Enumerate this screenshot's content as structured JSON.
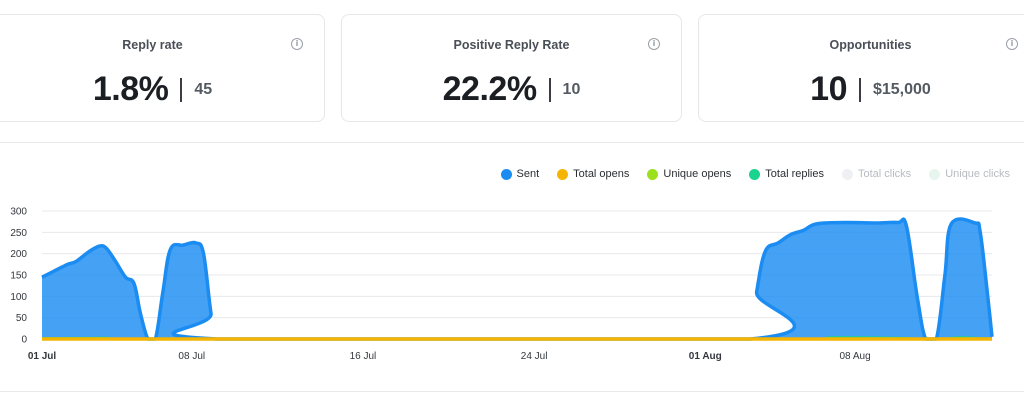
{
  "cards": [
    {
      "title": "Reply rate",
      "value": "1.8%",
      "sub": "45"
    },
    {
      "title": "Positive Reply Rate",
      "value": "22.2%",
      "sub": "10"
    },
    {
      "title": "Opportunities",
      "value": "10",
      "sub": "$15,000"
    }
  ],
  "info_glyph": "i",
  "legend": [
    {
      "label": "Sent",
      "color": "#1b8cf2",
      "active": true
    },
    {
      "label": "Total opens",
      "color": "#f4b400",
      "active": true
    },
    {
      "label": "Unique opens",
      "color": "#9be01d",
      "active": true
    },
    {
      "label": "Total replies",
      "color": "#19d38e",
      "active": true
    },
    {
      "label": "Total clicks",
      "color": "#eef0f3",
      "active": false
    },
    {
      "label": "Unique clicks",
      "color": "#e6f5ee",
      "active": false
    }
  ],
  "chart_data": {
    "type": "area",
    "title": "",
    "xlabel": "",
    "ylabel": "",
    "ylim": [
      0,
      300
    ],
    "yticks": [
      0,
      50,
      100,
      150,
      200,
      250,
      300
    ],
    "x_ticks": [
      {
        "label": "01 Jul",
        "day": 0,
        "bold": true
      },
      {
        "label": "08 Jul",
        "day": 7,
        "bold": false
      },
      {
        "label": "16 Jul",
        "day": 15,
        "bold": false
      },
      {
        "label": "24 Jul",
        "day": 23,
        "bold": false
      },
      {
        "label": "01 Aug",
        "day": 31,
        "bold": true
      },
      {
        "label": "08 Aug",
        "day": 38,
        "bold": false
      }
    ],
    "grid": true,
    "legend_position": "top-right",
    "series": [
      {
        "name": "Sent",
        "color": "#1b8cf2",
        "points": [
          [
            0,
            145
          ],
          [
            0.6,
            160
          ],
          [
            1.2,
            175
          ],
          [
            1.6,
            182
          ],
          [
            2.2,
            205
          ],
          [
            2.7,
            218
          ],
          [
            3.0,
            213
          ],
          [
            3.4,
            185
          ],
          [
            3.9,
            145
          ],
          [
            4.3,
            130
          ],
          [
            4.6,
            60
          ],
          [
            4.95,
            0
          ],
          [
            5.3,
            0
          ],
          [
            5.65,
            110
          ],
          [
            6.0,
            210
          ],
          [
            6.6,
            220
          ],
          [
            7.2,
            225
          ],
          [
            7.55,
            200
          ],
          [
            7.9,
            60
          ],
          [
            8.2,
            0
          ],
          [
            33.1,
            0
          ],
          [
            33.4,
            110
          ],
          [
            33.8,
            205
          ],
          [
            34.4,
            225
          ],
          [
            35.0,
            245
          ],
          [
            35.6,
            255
          ],
          [
            36.2,
            270
          ],
          [
            37.5,
            273
          ],
          [
            39.0,
            272
          ],
          [
            40.0,
            273
          ],
          [
            40.4,
            265
          ],
          [
            40.9,
            100
          ],
          [
            41.3,
            0
          ],
          [
            41.8,
            0
          ],
          [
            42.2,
            150
          ],
          [
            42.5,
            270
          ],
          [
            43.6,
            272
          ],
          [
            43.85,
            250
          ],
          [
            44.2,
            100
          ],
          [
            44.4,
            5
          ]
        ]
      },
      {
        "name": "Total replies",
        "color": "#19d38e",
        "points": [
          [
            0,
            2
          ],
          [
            3,
            3
          ],
          [
            4.8,
            0
          ],
          [
            33.2,
            0
          ],
          [
            37,
            4
          ],
          [
            40,
            3
          ],
          [
            41.2,
            0
          ],
          [
            42,
            0
          ],
          [
            43,
            4
          ],
          [
            44.4,
            0
          ]
        ]
      },
      {
        "name": "Total opens",
        "color": "#f4b400",
        "points": [
          [
            0,
            0
          ],
          [
            44.4,
            0
          ]
        ]
      }
    ]
  }
}
